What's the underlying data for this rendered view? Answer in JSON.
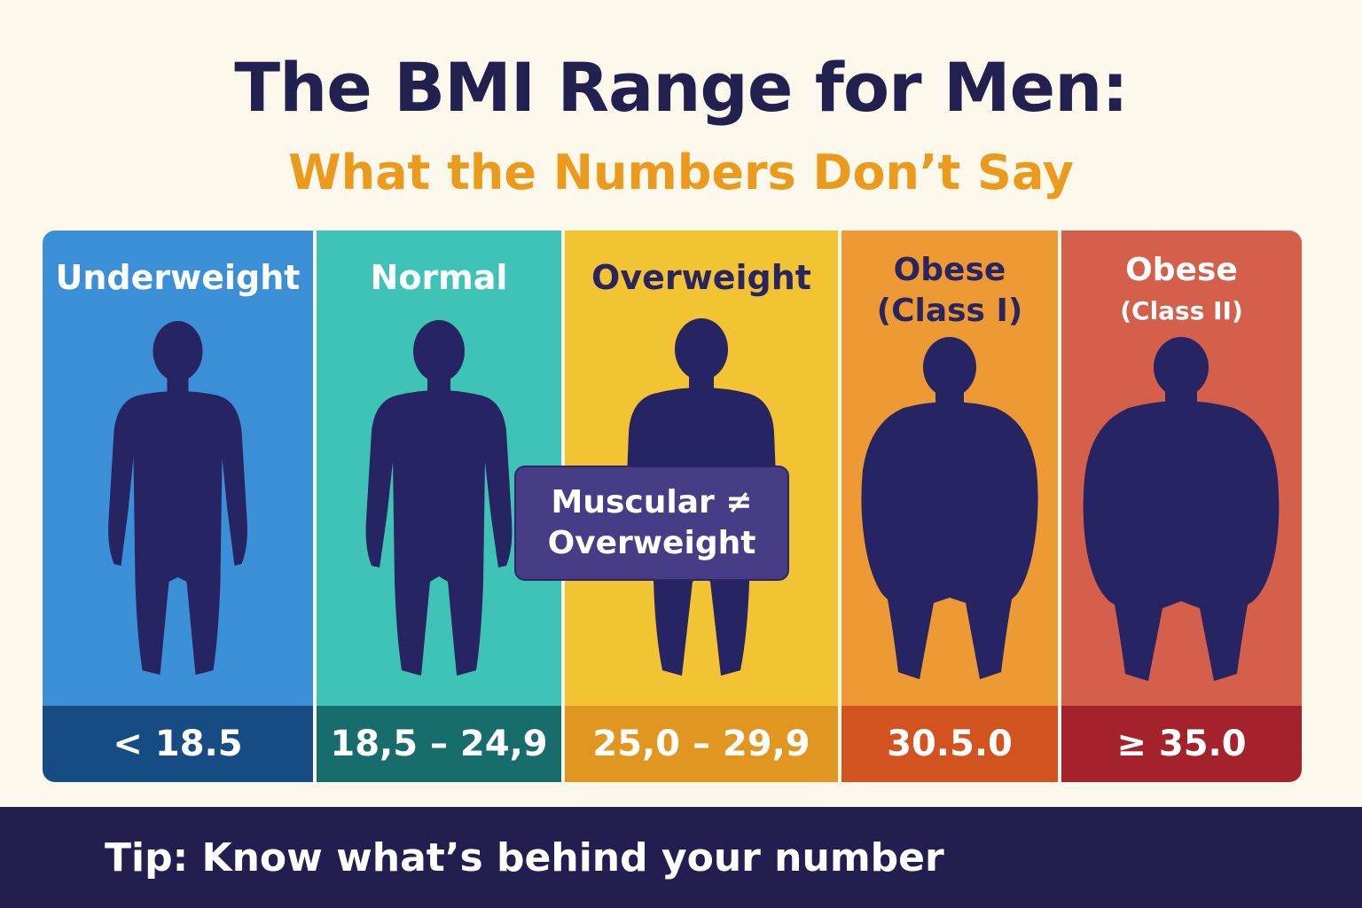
{
  "title": "The BMI Range for Men:",
  "subtitle": "What the Numbers Don’t Say",
  "categories": [
    {
      "label_lines": [
        "Underweight"
      ],
      "range": "< 18.5",
      "label_color": "#ffffff",
      "top_color": "#3b8fd6",
      "bottom_color": "#164b84",
      "body_type": "slim"
    },
    {
      "label_lines": [
        "Normal"
      ],
      "range": "18,5 – 24,9",
      "label_color": "#ffffff",
      "top_color": "#3fc3b6",
      "bottom_color": "#176c6c",
      "body_type": "normal"
    },
    {
      "label_lines": [
        "Overweight"
      ],
      "range": "25,0 – 29,9",
      "label_color": "#2a2560",
      "top_color": "#f2c433",
      "bottom_color": "#e19620",
      "body_type": "overweight"
    },
    {
      "label_lines": [
        "Obese",
        "(Class I)"
      ],
      "range": "30.5.0",
      "label_color": "#2a2560",
      "top_color": "#ed9a35",
      "bottom_color": "#d2531f",
      "body_type": "obese"
    },
    {
      "label_lines": [
        "Obese",
        "(Class II)"
      ],
      "range": "≥ 35.0",
      "label_color": "#ffffff",
      "top_color": "#d45f4a",
      "bottom_color": "#a3222c",
      "body_type": "obese-heavy"
    }
  ],
  "callout": {
    "line1": "Muscular ≠",
    "line2": "Overweight"
  },
  "footer": "Tip: Know what’s behind your number",
  "figure_color": "#272463"
}
